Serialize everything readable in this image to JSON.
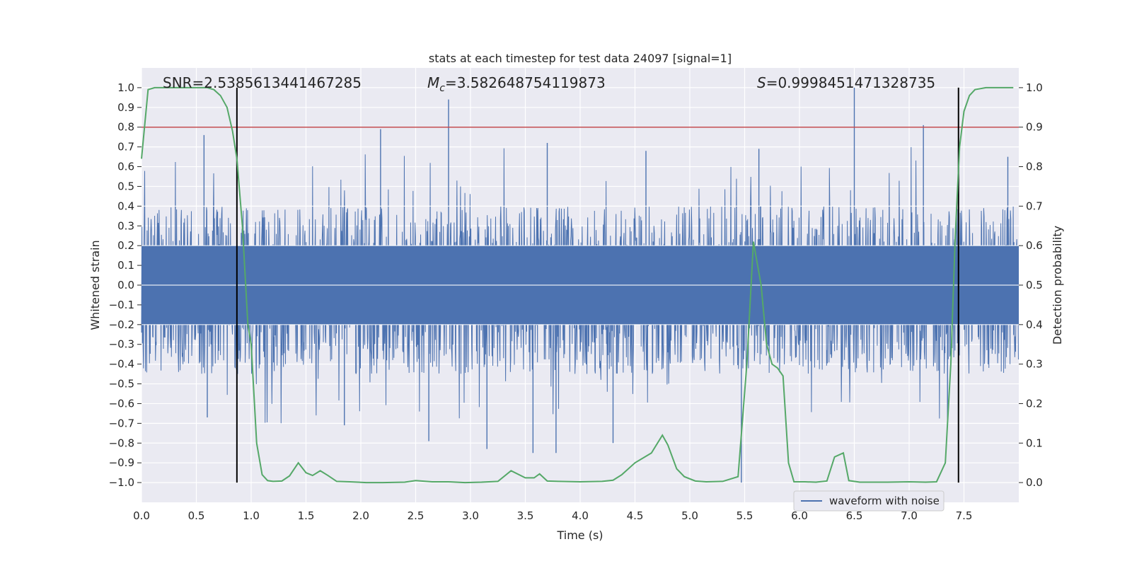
{
  "chart_data": {
    "type": "line",
    "title": "stats at each timestep for test data 24097 [signal=1]",
    "xlabel": "Time (s)",
    "ylabel_left": "Whitened strain",
    "ylabel_right": "Detection probability",
    "xlim": [
      0.0,
      8.0
    ],
    "ylim_left": [
      -1.1,
      1.1
    ],
    "ylim_right": [
      -0.05,
      1.05
    ],
    "x_ticks": [
      "0.0",
      "0.5",
      "1.0",
      "1.5",
      "2.0",
      "2.5",
      "3.0",
      "3.5",
      "4.0",
      "4.5",
      "5.0",
      "5.5",
      "6.0",
      "6.5",
      "7.0",
      "7.5"
    ],
    "y_ticks_left": [
      "1.0",
      "0.9",
      "0.8",
      "0.7",
      "0.6",
      "0.5",
      "0.4",
      "0.3",
      "0.2",
      "0.1",
      "0.0",
      "−0.1",
      "−0.2",
      "−0.3",
      "−0.4",
      "−0.5",
      "−0.6",
      "−0.7",
      "−0.8",
      "−0.9",
      "−1.0"
    ],
    "y_ticks_right": [
      "1.0",
      "0.9",
      "0.8",
      "0.7",
      "0.6",
      "0.5",
      "0.4",
      "0.3",
      "0.2",
      "0.1",
      "0.0"
    ],
    "grid": true,
    "legend": {
      "position": "lower-right",
      "entries": [
        "waveform with noise"
      ]
    },
    "annotations": {
      "snr": "SNR=2.5385613441467285",
      "mc_symbol": "M",
      "mc_sub": "c",
      "mc_value": "=3.582648754119873",
      "s_symbol": "S",
      "s_value": "=0.9998451471328735"
    },
    "threshold": {
      "axis": "right",
      "value": 0.9,
      "color": "#c44e52"
    },
    "vertical_lines": [
      0.87,
      7.45
    ],
    "waveform": {
      "name": "waveform with noise",
      "color": "#4c72b0",
      "duration": 8.0,
      "envelope": {
        "upper": 0.4,
        "lower": -0.45
      },
      "peaks": [
        {
          "x": 2.18,
          "y": 0.79
        },
        {
          "x": 2.8,
          "y": 0.94
        },
        {
          "x": 6.5,
          "y": 1.0
        },
        {
          "x": 7.13,
          "y": 0.81
        },
        {
          "x": 0.57,
          "y": 0.76
        },
        {
          "x": 3.7,
          "y": 0.72
        },
        {
          "x": 5.63,
          "y": 0.69
        },
        {
          "x": 7.9,
          "y": 0.65
        },
        {
          "x": 4.6,
          "y": 0.68
        },
        {
          "x": 2.62,
          "y": -0.79
        },
        {
          "x": 3.57,
          "y": -0.85
        },
        {
          "x": 3.78,
          "y": -0.85
        },
        {
          "x": 3.15,
          "y": -0.83
        },
        {
          "x": 4.3,
          "y": -0.8
        },
        {
          "x": 5.47,
          "y": -1.0
        },
        {
          "x": 1.85,
          "y": -0.71
        },
        {
          "x": 0.6,
          "y": -0.67
        },
        {
          "x": 7.35,
          "y": -0.69
        }
      ]
    },
    "detection_probability": {
      "color": "#55a868",
      "x": [
        0.0,
        0.06,
        0.12,
        0.3,
        0.5,
        0.6,
        0.66,
        0.72,
        0.78,
        0.83,
        0.87,
        0.92,
        0.97,
        1.0,
        1.05,
        1.1,
        1.15,
        1.2,
        1.28,
        1.35,
        1.43,
        1.5,
        1.56,
        1.63,
        1.7,
        1.78,
        1.9,
        2.05,
        2.2,
        2.4,
        2.5,
        2.65,
        2.8,
        2.95,
        3.1,
        3.25,
        3.37,
        3.5,
        3.58,
        3.63,
        3.7,
        3.8,
        4.0,
        4.2,
        4.3,
        4.38,
        4.5,
        4.65,
        4.75,
        4.8,
        4.88,
        4.95,
        5.05,
        5.15,
        5.3,
        5.44,
        5.52,
        5.58,
        5.65,
        5.7,
        5.75,
        5.8,
        5.85,
        5.9,
        5.95,
        6.05,
        6.15,
        6.25,
        6.32,
        6.4,
        6.45,
        6.55,
        6.8,
        7.0,
        7.15,
        7.25,
        7.33,
        7.38,
        7.42,
        7.46,
        7.5,
        7.55,
        7.6,
        7.7,
        7.8,
        7.95
      ],
      "y": [
        0.82,
        0.995,
        1.0,
        1.0,
        1.0,
        1.0,
        0.995,
        0.98,
        0.95,
        0.89,
        0.82,
        0.65,
        0.4,
        0.35,
        0.1,
        0.02,
        0.005,
        0.003,
        0.004,
        0.017,
        0.05,
        0.025,
        0.018,
        0.03,
        0.018,
        0.003,
        0.002,
        0.0,
        0.0,
        0.001,
        0.005,
        0.002,
        0.002,
        0.0,
        0.001,
        0.003,
        0.03,
        0.012,
        0.012,
        0.022,
        0.004,
        0.003,
        0.002,
        0.003,
        0.006,
        0.02,
        0.05,
        0.075,
        0.12,
        0.095,
        0.035,
        0.015,
        0.004,
        0.002,
        0.003,
        0.015,
        0.3,
        0.61,
        0.5,
        0.35,
        0.3,
        0.29,
        0.27,
        0.05,
        0.002,
        0.002,
        0.001,
        0.004,
        0.065,
        0.075,
        0.005,
        0.001,
        0.001,
        0.002,
        0.001,
        0.002,
        0.05,
        0.3,
        0.62,
        0.85,
        0.94,
        0.98,
        0.995,
        1.0,
        1.0,
        1.0
      ]
    }
  }
}
